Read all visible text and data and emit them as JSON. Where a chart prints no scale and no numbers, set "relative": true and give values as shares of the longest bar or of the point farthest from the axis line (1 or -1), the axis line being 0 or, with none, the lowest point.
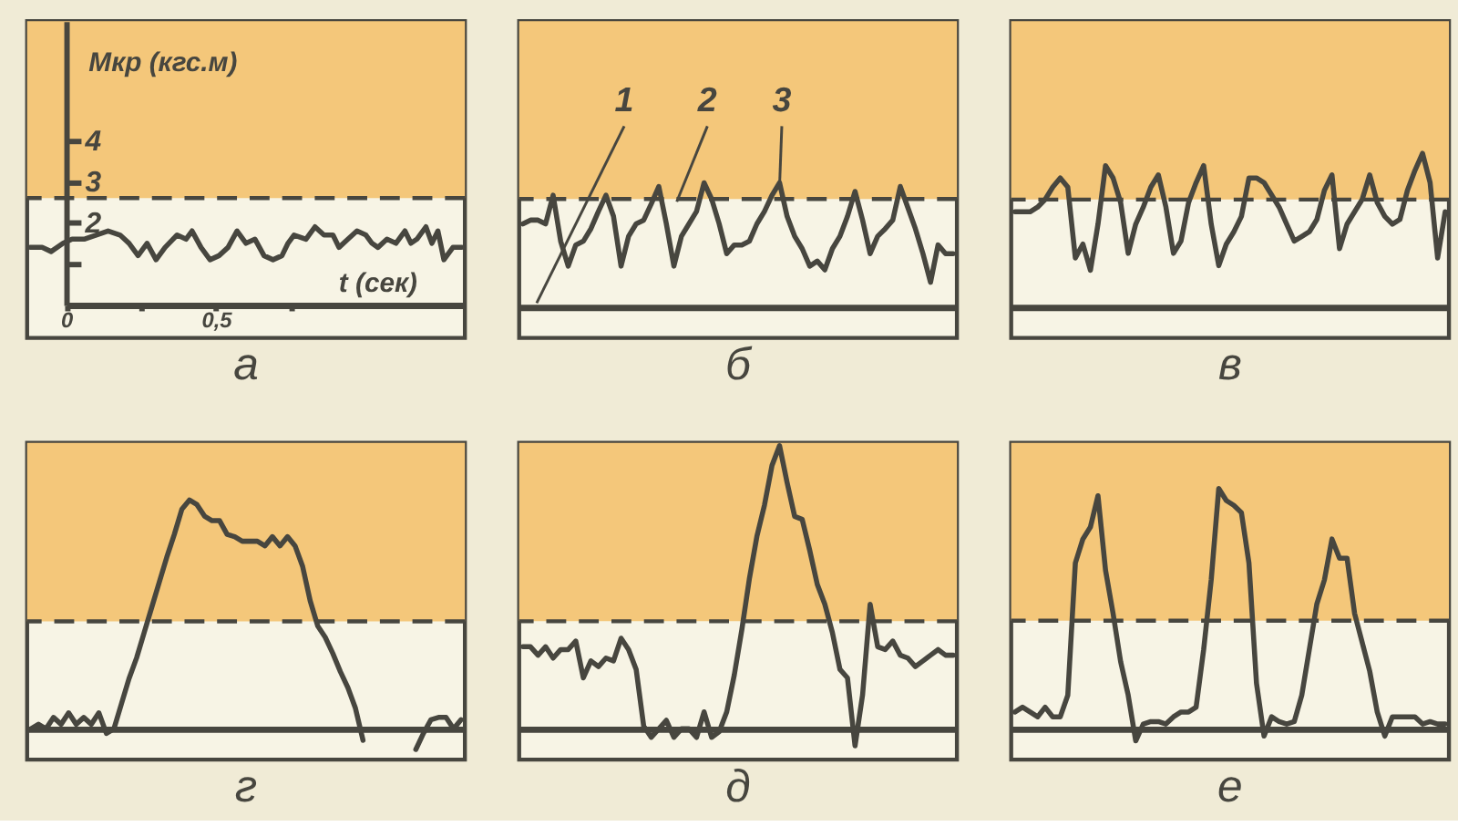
{
  "chart_data": [
    {
      "type": "line",
      "title": "а",
      "xlabel": "t (сек)",
      "ylabel": "Мкр (кгс.м)",
      "xlim": [
        -0.13,
        1.33
      ],
      "ylim": [
        -0.8,
        6.9
      ],
      "xticks": [
        {
          "value": 0,
          "label": "0"
        },
        {
          "value": 0.25,
          "label": null
        },
        {
          "value": 0.5,
          "label": "0,5"
        },
        {
          "value": 0.75,
          "label": null
        }
      ],
      "yticks": [
        {
          "value": 1,
          "label": null
        },
        2,
        3,
        4
      ],
      "grid": false,
      "x": [
        -0.12,
        -0.08,
        -0.05,
        -0.01,
        0.02,
        0.06,
        0.1,
        0.14,
        0.18,
        0.21,
        0.24,
        0.27,
        0.3,
        0.33,
        0.37,
        0.4,
        0.42,
        0.45,
        0.48,
        0.51,
        0.54,
        0.57,
        0.6,
        0.63,
        0.66,
        0.69,
        0.72,
        0.74,
        0.76,
        0.8,
        0.83,
        0.86,
        0.89,
        0.91,
        0.94,
        0.97,
        1.0,
        1.02,
        1.04,
        1.07,
        1.1,
        1.13,
        1.15,
        1.17,
        1.2,
        1.22,
        1.24,
        1.26,
        1.29,
        1.32
      ],
      "series": [
        {
          "color": "#47463f",
          "values": [
            1.4,
            1.4,
            1.3,
            1.5,
            1.6,
            1.6,
            1.7,
            1.8,
            1.7,
            1.5,
            1.2,
            1.5,
            1.1,
            1.4,
            1.7,
            1.6,
            1.8,
            1.4,
            1.1,
            1.2,
            1.4,
            1.8,
            1.5,
            1.6,
            1.2,
            1.1,
            1.2,
            1.5,
            1.7,
            1.6,
            1.9,
            1.7,
            1.7,
            1.4,
            1.6,
            1.8,
            1.7,
            1.5,
            1.4,
            1.6,
            1.5,
            1.8,
            1.5,
            1.6,
            1.9,
            1.5,
            1.8,
            1.1,
            1.4,
            1.4
          ]
        }
      ],
      "bands": [
        {
          "axis": "y",
          "from": 2.6,
          "to": 6.9,
          "color": "#f4c77a"
        }
      ],
      "ref_lines": [
        {
          "axis": "y",
          "value": 2.6,
          "line_style": "dashed",
          "color": "#47463f"
        }
      ]
    },
    {
      "type": "line",
      "title": "б",
      "relative": true,
      "grid": false,
      "categories": [
        null,
        null,
        null,
        null,
        null,
        null,
        null,
        null,
        null,
        null,
        null,
        null,
        null,
        null,
        null,
        null,
        null,
        null,
        null,
        null,
        null,
        null,
        null,
        null,
        null,
        null,
        null,
        null,
        null,
        null,
        null,
        null,
        null,
        null,
        null,
        null,
        null,
        null,
        null,
        null,
        null,
        null,
        null,
        null,
        null,
        null,
        null,
        null,
        null,
        null,
        null,
        null,
        null,
        null,
        null,
        null,
        null,
        null
      ],
      "series": [
        {
          "color": "#47463f",
          "values": [
            0.67,
            0.7,
            0.7,
            0.67,
            0.9,
            0.53,
            0.33,
            0.5,
            0.53,
            0.63,
            0.77,
            0.9,
            0.73,
            0.33,
            0.57,
            0.67,
            0.7,
            0.83,
            0.97,
            0.67,
            0.33,
            0.57,
            0.67,
            0.77,
            1.0,
            0.87,
            0.67,
            0.43,
            0.5,
            0.5,
            0.53,
            0.67,
            0.77,
            0.9,
            1.0,
            0.73,
            0.57,
            0.47,
            0.33,
            0.37,
            0.3,
            0.47,
            0.57,
            0.73,
            0.93,
            0.7,
            0.43,
            0.57,
            0.63,
            0.7,
            0.97,
            0.8,
            0.63,
            0.43,
            0.2,
            0.5,
            0.43,
            0.43
          ]
        }
      ],
      "bands": [
        {
          "axis": "y",
          "from": 0.87,
          "to": 2.3,
          "color": "#f4c77a"
        }
      ],
      "ref_lines": [
        {
          "axis": "y",
          "value": 0.87,
          "line_style": "dashed",
          "color": "#47463f"
        }
      ],
      "annotations": [
        "1",
        "2",
        "3"
      ]
    },
    {
      "type": "line",
      "title": "в",
      "relative": true,
      "grid": false,
      "categories": [
        null,
        null,
        null,
        null,
        null,
        null,
        null,
        null,
        null,
        null,
        null,
        null,
        null,
        null,
        null,
        null,
        null,
        null,
        null,
        null,
        null,
        null,
        null,
        null,
        null,
        null,
        null,
        null,
        null,
        null,
        null,
        null,
        null,
        null,
        null,
        null,
        null,
        null,
        null,
        null,
        null,
        null,
        null,
        null,
        null,
        null,
        null,
        null,
        null,
        null,
        null,
        null,
        null,
        null,
        null,
        null,
        null,
        null
      ],
      "series": [
        {
          "color": "#47463f",
          "values": [
            0.62,
            0.62,
            0.62,
            0.65,
            0.7,
            0.78,
            0.84,
            0.78,
            0.32,
            0.41,
            0.24,
            0.54,
            0.92,
            0.84,
            0.68,
            0.35,
            0.54,
            0.65,
            0.78,
            0.86,
            0.65,
            0.35,
            0.43,
            0.68,
            0.81,
            0.92,
            0.54,
            0.27,
            0.41,
            0.49,
            0.59,
            0.84,
            0.84,
            0.81,
            0.73,
            0.65,
            0.54,
            0.43,
            0.46,
            0.49,
            0.57,
            0.76,
            0.86,
            0.38,
            0.54,
            0.62,
            0.7,
            0.86,
            0.68,
            0.59,
            0.54,
            0.57,
            0.76,
            0.89,
            1.0,
            0.81,
            0.32,
            0.62
          ]
        }
      ],
      "bands": [
        {
          "axis": "y",
          "from": 0.7,
          "to": 1.86,
          "color": "#f4c77a"
        }
      ],
      "ref_lines": [
        {
          "axis": "y",
          "value": 0.7,
          "line_style": "dashed",
          "color": "#47463f"
        }
      ]
    },
    {
      "type": "line",
      "title": "г",
      "relative": true,
      "grid": false,
      "categories": [
        null,
        null,
        null,
        null,
        null,
        null,
        null,
        null,
        null,
        null,
        null,
        null,
        null,
        null,
        null,
        null,
        null,
        null,
        null,
        null,
        null,
        null,
        null,
        null,
        null,
        null,
        null,
        null,
        null,
        null,
        null,
        null,
        null,
        null,
        null,
        null,
        null,
        null,
        null,
        null,
        null,
        null,
        null,
        null,
        null,
        null,
        null,
        null,
        null,
        null,
        null,
        null,
        null,
        null,
        null,
        null,
        null,
        null
      ],
      "series": [
        {
          "color": "#47463f",
          "values": [
            0.0,
            0.02,
            0.0,
            0.05,
            0.02,
            0.07,
            0.02,
            0.05,
            0.02,
            0.07,
            -0.02,
            0.0,
            0.11,
            0.22,
            0.31,
            0.42,
            0.53,
            0.64,
            0.75,
            0.85,
            0.96,
            1.0,
            0.98,
            0.93,
            0.91,
            0.91,
            0.85,
            0.84,
            0.82,
            0.82,
            0.82,
            0.8,
            0.84,
            0.8,
            0.84,
            0.8,
            0.71,
            0.56,
            0.45,
            0.4,
            0.33,
            0.25,
            0.18,
            0.09,
            -0.05,
            null,
            null,
            null,
            null,
            null,
            null,
            null,
            null,
            null,
            null,
            null,
            null,
            null
          ]
        },
        {
          "color": "#47463f",
          "values": [
            null,
            null,
            null,
            null,
            null,
            null,
            null,
            null,
            null,
            null,
            null,
            null,
            null,
            null,
            null,
            null,
            null,
            null,
            null,
            null,
            null,
            null,
            null,
            null,
            null,
            null,
            null,
            null,
            null,
            null,
            null,
            null,
            null,
            null,
            null,
            null,
            null,
            null,
            null,
            null,
            null,
            null,
            null,
            null,
            null,
            null,
            null,
            null,
            null,
            null,
            null,
            -0.09,
            -0.02,
            0.04,
            0.05,
            0.05,
            0.0,
            0.04
          ]
        }
      ],
      "bands": [
        {
          "axis": "y",
          "from": 0.47,
          "to": 1.25,
          "color": "#f4c77a"
        }
      ],
      "ref_lines": [
        {
          "axis": "y",
          "value": 0.47,
          "line_style": "dashed",
          "color": "#47463f"
        }
      ]
    },
    {
      "type": "line",
      "title": "д",
      "relative": true,
      "grid": false,
      "categories": [
        null,
        null,
        null,
        null,
        null,
        null,
        null,
        null,
        null,
        null,
        null,
        null,
        null,
        null,
        null,
        null,
        null,
        null,
        null,
        null,
        null,
        null,
        null,
        null,
        null,
        null,
        null,
        null,
        null,
        null,
        null,
        null,
        null,
        null,
        null,
        null,
        null,
        null,
        null,
        null,
        null,
        null,
        null,
        null,
        null,
        null,
        null,
        null,
        null,
        null,
        null,
        null,
        null,
        null,
        null,
        null,
        null,
        null
      ],
      "series": [
        {
          "color": "#47463f",
          "values": [
            0.29,
            0.29,
            0.26,
            0.29,
            0.25,
            0.28,
            0.28,
            0.31,
            0.18,
            0.24,
            0.22,
            0.25,
            0.24,
            0.32,
            0.28,
            0.21,
            0.01,
            -0.03,
            0.0,
            0.03,
            -0.03,
            0.0,
            0.0,
            -0.03,
            0.06,
            -0.03,
            -0.01,
            0.06,
            0.19,
            0.35,
            0.53,
            0.68,
            0.79,
            0.93,
            1.0,
            0.87,
            0.75,
            0.74,
            0.63,
            0.51,
            0.44,
            0.34,
            0.21,
            0.18,
            -0.06,
            0.12,
            0.44,
            0.29,
            0.28,
            0.31,
            0.26,
            0.25,
            0.22,
            0.24,
            0.26,
            0.28,
            0.26,
            0.26
          ]
        }
      ],
      "bands": [
        {
          "axis": "y",
          "from": 0.38,
          "to": 1.01,
          "color": "#f4c77a"
        }
      ],
      "ref_lines": [
        {
          "axis": "y",
          "value": 0.38,
          "line_style": "dashed",
          "color": "#47463f"
        }
      ]
    },
    {
      "type": "line",
      "title": "е",
      "relative": true,
      "grid": false,
      "categories": [
        null,
        null,
        null,
        null,
        null,
        null,
        null,
        null,
        null,
        null,
        null,
        null,
        null,
        null,
        null,
        null,
        null,
        null,
        null,
        null,
        null,
        null,
        null,
        null,
        null,
        null,
        null,
        null,
        null,
        null,
        null,
        null,
        null,
        null,
        null,
        null,
        null,
        null,
        null,
        null,
        null,
        null,
        null,
        null,
        null,
        null,
        null,
        null,
        null,
        null,
        null,
        null,
        null,
        null,
        null,
        null,
        null,
        null
      ],
      "series": [
        {
          "color": "#47463f",
          "values": [
            0.07,
            0.09,
            0.07,
            0.05,
            0.09,
            0.05,
            0.05,
            0.14,
            0.69,
            0.79,
            0.84,
            0.97,
            0.66,
            0.48,
            0.28,
            0.14,
            -0.05,
            0.02,
            0.03,
            0.03,
            0.02,
            0.05,
            0.07,
            0.07,
            0.09,
            0.33,
            0.62,
            1.0,
            0.95,
            0.93,
            0.9,
            0.69,
            0.19,
            -0.03,
            0.05,
            0.03,
            0.02,
            0.03,
            0.14,
            0.33,
            0.52,
            0.62,
            0.79,
            0.71,
            0.71,
            0.48,
            0.36,
            0.24,
            0.07,
            -0.03,
            0.05,
            0.05,
            0.05,
            0.05,
            0.02,
            0.03,
            0.02,
            0.02
          ]
        }
      ],
      "bands": [
        {
          "axis": "y",
          "from": 0.45,
          "to": 1.19,
          "color": "#f4c77a"
        }
      ],
      "ref_lines": [
        {
          "axis": "y",
          "value": 0.45,
          "line_style": "dashed",
          "color": "#47463f"
        }
      ]
    }
  ]
}
